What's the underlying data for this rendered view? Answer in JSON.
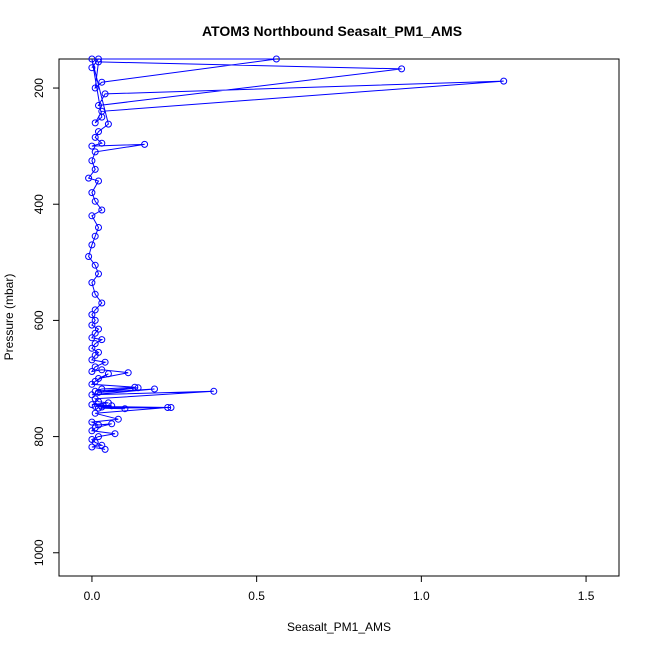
{
  "chart_data": {
    "type": "line",
    "title": "ATOM3 Northbound Seasalt_PM1_AMS",
    "xlabel": "Seasalt_PM1_AMS",
    "ylabel": "Pressure (mbar)",
    "xlim": [
      -0.1,
      1.6
    ],
    "ylim": [
      1040,
      150
    ],
    "y_inverted": true,
    "grid": false,
    "x_ticks": [
      {
        "value": 0.0,
        "label": "0.0"
      },
      {
        "value": 0.5,
        "label": "0.5"
      },
      {
        "value": 1.0,
        "label": "1.0"
      },
      {
        "value": 1.5,
        "label": "1.5"
      }
    ],
    "y_ticks": [
      {
        "value": 200,
        "label": "200"
      },
      {
        "value": 400,
        "label": "400"
      },
      {
        "value": 600,
        "label": "600"
      },
      {
        "value": 800,
        "label": "800"
      },
      {
        "value": 1000,
        "label": "1000"
      }
    ],
    "color": "#0000ff",
    "marker": "open-circle",
    "series": [
      {
        "x": [
          0.0,
          0.02,
          0.56,
          0.03,
          0.01,
          0.02,
          0.94,
          0.02,
          0.04,
          1.25,
          0.03,
          0.01,
          0.03,
          0.0,
          0.05,
          0.02,
          0.01,
          0.03,
          0.0,
          0.16,
          0.01,
          0.0,
          0.01,
          -0.01,
          0.02,
          0.0,
          0.01,
          0.03,
          0.0,
          0.02,
          0.01,
          0.0,
          -0.01,
          0.01,
          0.02,
          0.0,
          0.01,
          0.03,
          0.01,
          0.0,
          0.01,
          0.0,
          0.02,
          0.01,
          0.0,
          0.03,
          0.01,
          0.0,
          0.02,
          0.01,
          0.0,
          0.04,
          0.01,
          0.0,
          0.03,
          0.11,
          0.02,
          0.05,
          0.01,
          0.0,
          0.13,
          0.03,
          0.01,
          0.14,
          0.02,
          0.19,
          0.0,
          0.37,
          0.01,
          0.02,
          0.05,
          0.0,
          0.06,
          0.01,
          0.24,
          0.02,
          0.1,
          0.03,
          0.23,
          0.01,
          0.08,
          0.0,
          0.02,
          0.06,
          0.01,
          0.0,
          0.07,
          0.02,
          0.0,
          0.01,
          0.03,
          0.0,
          0.04
        ],
        "y": [
          165,
          150,
          150,
          190,
          200,
          155,
          167,
          230,
          210,
          188,
          240,
          260,
          250,
          150,
          262,
          275,
          285,
          295,
          300,
          297,
          310,
          325,
          340,
          355,
          360,
          380,
          395,
          410,
          420,
          440,
          455,
          470,
          490,
          505,
          520,
          535,
          555,
          570,
          582,
          590,
          600,
          608,
          615,
          622,
          630,
          633,
          640,
          648,
          655,
          660,
          668,
          672,
          680,
          688,
          685,
          690,
          700,
          692,
          705,
          710,
          715,
          718,
          722,
          716,
          724,
          718,
          728,
          722,
          735,
          740,
          742,
          745,
          747,
          748,
          750,
          751,
          752,
          749,
          750,
          760,
          770,
          775,
          780,
          778,
          785,
          790,
          795,
          800,
          805,
          810,
          815,
          818,
          822
        ]
      }
    ]
  }
}
